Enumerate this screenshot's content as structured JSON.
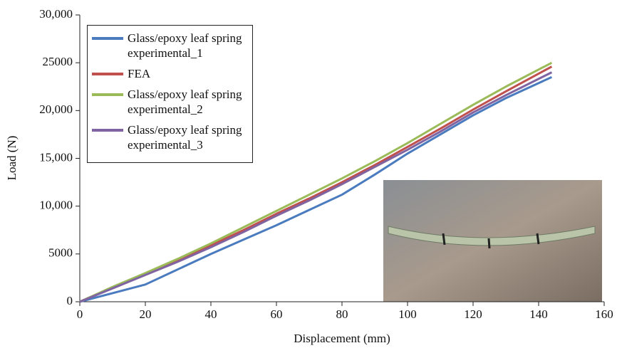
{
  "chart_data": {
    "type": "line",
    "xlabel": "Displacement (mm)",
    "ylabel": "Load (N)",
    "x": [
      0,
      10,
      20,
      30,
      40,
      50,
      60,
      70,
      80,
      90,
      100,
      110,
      120,
      130,
      144
    ],
    "series": [
      {
        "name": "Glass/epoxy leaf spring experimental_1",
        "color": "#4a7bbf",
        "values": [
          0,
          900,
          1800,
          3400,
          5000,
          6500,
          8000,
          9600,
          11200,
          13300,
          15500,
          17500,
          19500,
          21300,
          23500
        ]
      },
      {
        "name": "FEA",
        "color": "#c0504d",
        "values": [
          0,
          1500,
          2900,
          4400,
          5900,
          7500,
          9200,
          10800,
          12500,
          14300,
          16200,
          18100,
          20100,
          22000,
          24600
        ]
      },
      {
        "name": "Glass/epoxy leaf spring experimental_2",
        "color": "#9bbb59",
        "values": [
          0,
          1550,
          3000,
          4500,
          6100,
          7800,
          9500,
          11200,
          12900,
          14700,
          16600,
          18600,
          20600,
          22500,
          25000
        ]
      },
      {
        "name": "Glass/epoxy leaf spring experimental_3",
        "color": "#8064a2",
        "values": [
          0,
          1400,
          2800,
          4200,
          5700,
          7300,
          9000,
          10600,
          12300,
          14100,
          15900,
          17800,
          19800,
          21600,
          24000
        ]
      }
    ],
    "xlim": [
      0,
      160
    ],
    "xticks": [
      0,
      20,
      40,
      60,
      80,
      100,
      120,
      140,
      160
    ],
    "ylim": [
      0,
      30000
    ],
    "yticks": [
      0,
      5000,
      {
        "value": 10000,
        "label": "10,000"
      },
      {
        "value": 15000,
        "label": "15,000"
      },
      {
        "value": 20000,
        "label": "20,000"
      },
      25000,
      {
        "value": 30000,
        "label": "30,000"
      }
    ]
  }
}
